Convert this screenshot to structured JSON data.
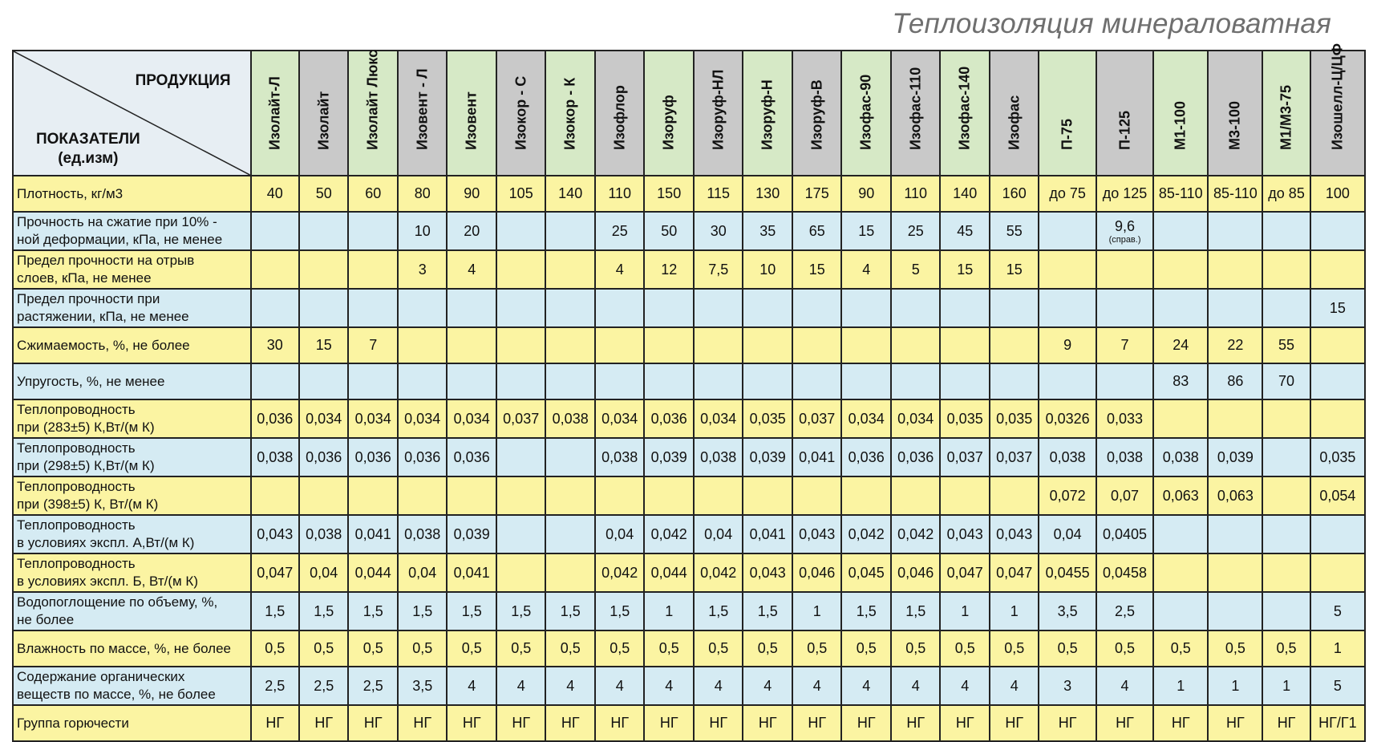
{
  "title": "Теплоизоляция минераловатная",
  "header": {
    "products_label": "ПРОДУКЦИЯ",
    "indicators_label": "ПОКАЗАТЕЛИ",
    "units_label": "(ед.изм)"
  },
  "columns": [
    {
      "name": "Изолайт-Л",
      "color": "green"
    },
    {
      "name": "Изолайт",
      "color": "gray"
    },
    {
      "name": "Изолайт Люкс",
      "color": "green"
    },
    {
      "name": "Изовент - Л",
      "color": "gray"
    },
    {
      "name": "Изовент",
      "color": "green"
    },
    {
      "name": "Изокор - С",
      "color": "gray"
    },
    {
      "name": "Изокор - К",
      "color": "green"
    },
    {
      "name": "Изофлор",
      "color": "gray"
    },
    {
      "name": "Изоруф",
      "color": "green"
    },
    {
      "name": "Изоруф-НЛ",
      "color": "gray"
    },
    {
      "name": "Изоруф-Н",
      "color": "green"
    },
    {
      "name": "Изоруф-В",
      "color": "gray"
    },
    {
      "name": "Изофас-90",
      "color": "green"
    },
    {
      "name": "Изофас-110",
      "color": "gray"
    },
    {
      "name": "Изофас-140",
      "color": "green"
    },
    {
      "name": "Изофас",
      "color": "gray"
    },
    {
      "name": "П-75",
      "color": "green"
    },
    {
      "name": "П-125",
      "color": "gray"
    },
    {
      "name": "М1-100",
      "color": "green"
    },
    {
      "name": "М3-100",
      "color": "gray"
    },
    {
      "name": "М1/М3-75",
      "color": "green"
    },
    {
      "name": "Изошелл-Ц/ЦФ",
      "color": "gray"
    }
  ],
  "rows": [
    {
      "label": [
        "Плотность, кг/м3"
      ],
      "style": "yellow",
      "values": [
        "40",
        "50",
        "60",
        "80",
        "90",
        "105",
        "140",
        "110",
        "150",
        "115",
        "130",
        "175",
        "90",
        "110",
        "140",
        "160",
        "до 75",
        "до 125",
        "85-110",
        "85-110",
        "до 85",
        "100"
      ]
    },
    {
      "label": [
        "Прочность на сжатие при 10% -",
        "ной деформации, кПа, не менее"
      ],
      "style": "blue",
      "values": [
        "",
        "",
        "",
        "10",
        "20",
        "",
        "",
        "25",
        "50",
        "30",
        "35",
        "65",
        "15",
        "25",
        "45",
        "55",
        "",
        "9,6",
        "",
        "",
        "",
        ""
      ],
      "notes": [
        "",
        "",
        "",
        "",
        "",
        "",
        "",
        "",
        "",
        "",
        "",
        "",
        "",
        "",
        "",
        "",
        "",
        "(справ.)",
        "",
        "",
        "",
        ""
      ]
    },
    {
      "label": [
        "Предел прочности на отрыв",
        "слоев, кПа, не менее"
      ],
      "style": "yellow",
      "values": [
        "",
        "",
        "",
        "3",
        "4",
        "",
        "",
        "4",
        "12",
        "7,5",
        "10",
        "15",
        "4",
        "5",
        "15",
        "15",
        "",
        "",
        "",
        "",
        "",
        ""
      ]
    },
    {
      "label": [
        "Предел прочности при",
        "растяжении, кПа, не менее"
      ],
      "style": "blue",
      "values": [
        "",
        "",
        "",
        "",
        "",
        "",
        "",
        "",
        "",
        "",
        "",
        "",
        "",
        "",
        "",
        "",
        "",
        "",
        "",
        "",
        "",
        "15"
      ]
    },
    {
      "label": [
        "Сжимаемость, %, не более"
      ],
      "style": "yellow",
      "values": [
        "30",
        "15",
        "7",
        "",
        "",
        "",
        "",
        "",
        "",
        "",
        "",
        "",
        "",
        "",
        "",
        "",
        "9",
        "7",
        "24",
        "22",
        "55",
        ""
      ]
    },
    {
      "label": [
        "Упругость, %, не менее"
      ],
      "style": "blue",
      "values": [
        "",
        "",
        "",
        "",
        "",
        "",
        "",
        "",
        "",
        "",
        "",
        "",
        "",
        "",
        "",
        "",
        "",
        "",
        "83",
        "86",
        "70",
        ""
      ]
    },
    {
      "label": [
        "Теплопроводность",
        "при (283±5) К,Вт/(м К)"
      ],
      "style": "yellow",
      "values": [
        "0,036",
        "0,034",
        "0,034",
        "0,034",
        "0,034",
        "0,037",
        "0,038",
        "0,034",
        "0,036",
        "0,034",
        "0,035",
        "0,037",
        "0,034",
        "0,034",
        "0,035",
        "0,035",
        "0,0326",
        "0,033",
        "",
        "",
        "",
        ""
      ]
    },
    {
      "label": [
        "Теплопроводность",
        "при (298±5) К,Вт/(м К)"
      ],
      "style": "blue",
      "values": [
        "0,038",
        "0,036",
        "0,036",
        "0,036",
        "0,036",
        "",
        "",
        "0,038",
        "0,039",
        "0,038",
        "0,039",
        "0,041",
        "0,036",
        "0,036",
        "0,037",
        "0,037",
        "0,038",
        "0,038",
        "0,038",
        "0,039",
        "",
        "0,035"
      ]
    },
    {
      "label": [
        "Теплопроводность",
        "при (398±5) К, Вт/(м К)"
      ],
      "style": "yellow",
      "values": [
        "",
        "",
        "",
        "",
        "",
        "",
        "",
        "",
        "",
        "",
        "",
        "",
        "",
        "",
        "",
        "",
        "0,072",
        "0,07",
        "0,063",
        "0,063",
        "",
        "0,054"
      ]
    },
    {
      "label": [
        "Теплопроводность",
        "в условиях экспл. А,Вт/(м К)"
      ],
      "style": "blue",
      "values": [
        "0,043",
        "0,038",
        "0,041",
        "0,038",
        "0,039",
        "",
        "",
        "0,04",
        "0,042",
        "0,04",
        "0,041",
        "0,043",
        "0,042",
        "0,042",
        "0,043",
        "0,043",
        "0,04",
        "0,0405",
        "",
        "",
        "",
        ""
      ]
    },
    {
      "label": [
        "Теплопроводность",
        "в условиях экспл. Б, Вт/(м К)"
      ],
      "style": "yellow",
      "values": [
        "0,047",
        "0,04",
        "0,044",
        "0,04",
        "0,041",
        "",
        "",
        "0,042",
        "0,044",
        "0,042",
        "0,043",
        "0,046",
        "0,045",
        "0,046",
        "0,047",
        "0,047",
        "0,0455",
        "0,0458",
        "",
        "",
        "",
        ""
      ]
    },
    {
      "label": [
        "Водопоглощение по объему, %,",
        "не более"
      ],
      "style": "blue",
      "values": [
        "1,5",
        "1,5",
        "1,5",
        "1,5",
        "1,5",
        "1,5",
        "1,5",
        "1,5",
        "1",
        "1,5",
        "1,5",
        "1",
        "1,5",
        "1,5",
        "1",
        "1",
        "3,5",
        "2,5",
        "",
        "",
        "",
        "5"
      ]
    },
    {
      "label": [
        "Влажность по массе, %, не более"
      ],
      "style": "yellow",
      "values": [
        "0,5",
        "0,5",
        "0,5",
        "0,5",
        "0,5",
        "0,5",
        "0,5",
        "0,5",
        "0,5",
        "0,5",
        "0,5",
        "0,5",
        "0,5",
        "0,5",
        "0,5",
        "0,5",
        "0,5",
        "0,5",
        "0,5",
        "0,5",
        "0,5",
        "1"
      ]
    },
    {
      "label": [
        "Содержание органических",
        "веществ по массе, %,  не более"
      ],
      "style": "blue",
      "values": [
        "2,5",
        "2,5",
        "2,5",
        "3,5",
        "4",
        "4",
        "4",
        "4",
        "4",
        "4",
        "4",
        "4",
        "4",
        "4",
        "4",
        "4",
        "3",
        "4",
        "1",
        "1",
        "1",
        "5"
      ]
    },
    {
      "label": [
        "Группа горючести"
      ],
      "style": "yellow",
      "values": [
        "НГ",
        "НГ",
        "НГ",
        "НГ",
        "НГ",
        "НГ",
        "НГ",
        "НГ",
        "НГ",
        "НГ",
        "НГ",
        "НГ",
        "НГ",
        "НГ",
        "НГ",
        "НГ",
        "НГ",
        "НГ",
        "НГ",
        "НГ",
        "НГ",
        "НГ/Г1"
      ]
    }
  ],
  "colors": {
    "green": "#d6e9c6",
    "gray": "#c9c9c9",
    "yellow": "#fbf4a2",
    "blue": "#d5ebf3"
  }
}
